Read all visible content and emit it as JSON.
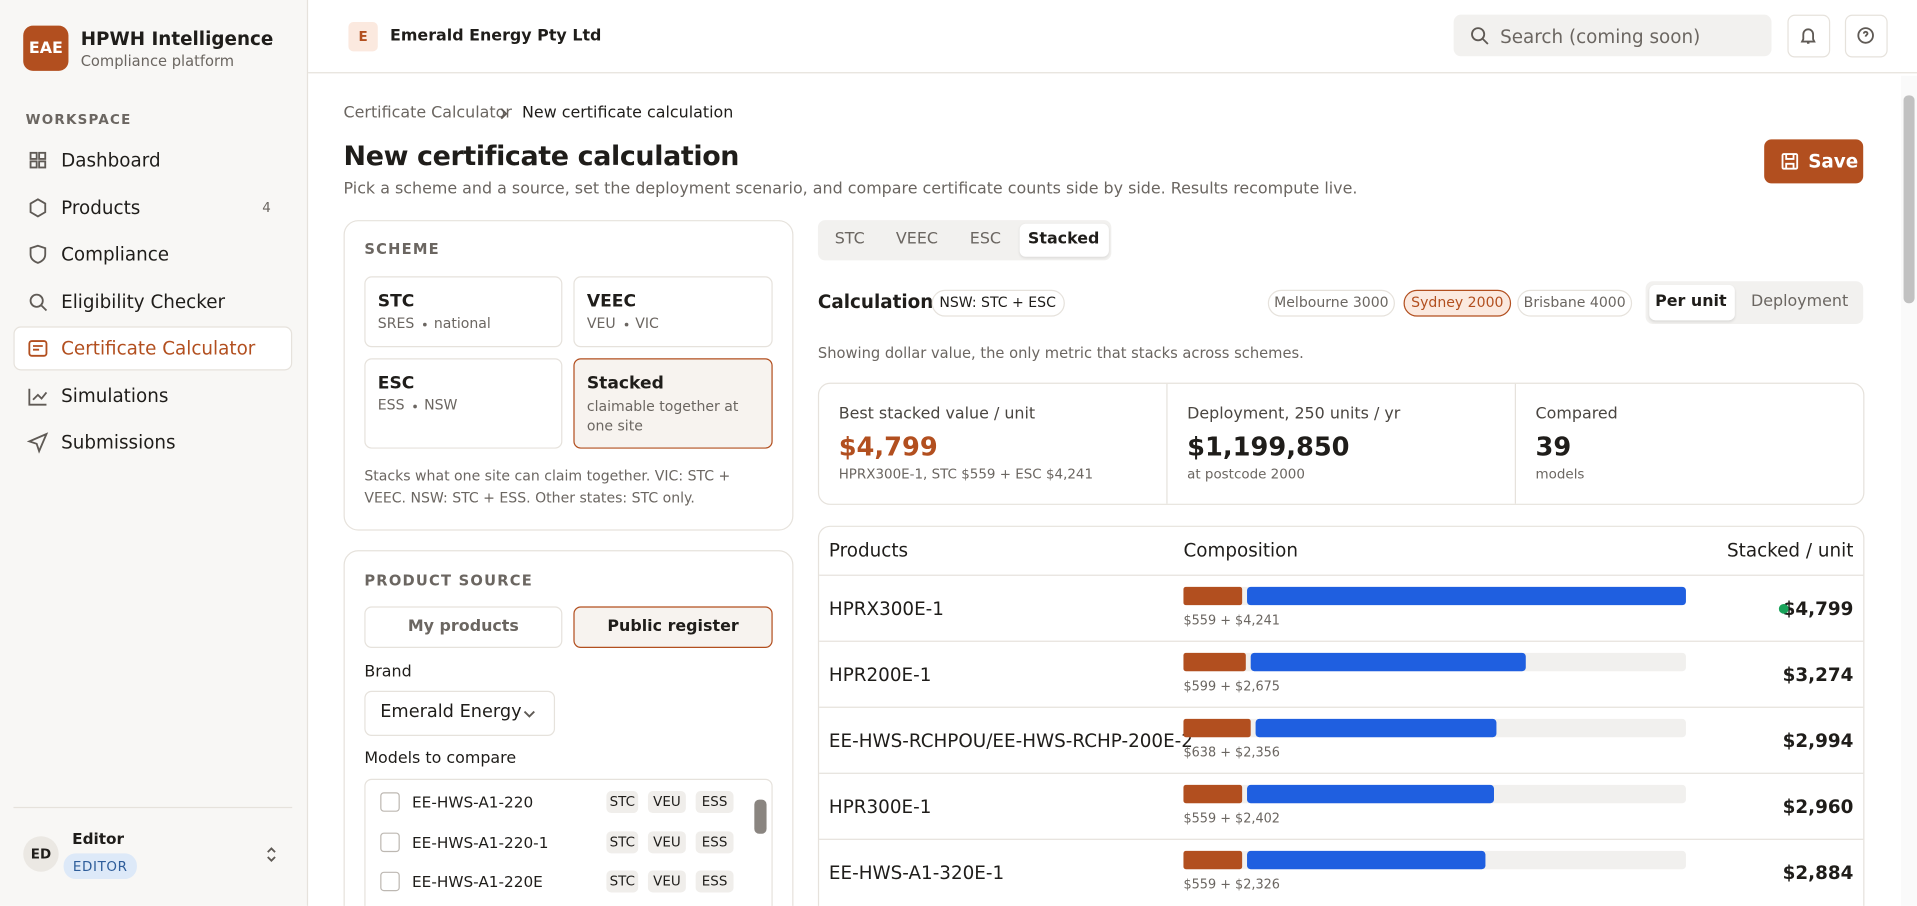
{
  "sidebar": {
    "logo": "EAE",
    "app_name": "HPWH Intelligence",
    "app_subtitle": "Compliance platform",
    "section": "WORKSPACE",
    "nav": [
      {
        "label": "Dashboard"
      },
      {
        "label": "Products",
        "badge": "4"
      },
      {
        "label": "Compliance"
      },
      {
        "label": "Eligibility Checker"
      },
      {
        "label": "Certificate Calculator"
      },
      {
        "label": "Simulations"
      },
      {
        "label": "Submissions"
      }
    ],
    "user": {
      "initials": "ED",
      "name": "Editor",
      "role": "EDITOR"
    }
  },
  "topbar": {
    "org_initial": "E",
    "org_name": "Emerald Energy Pty Ltd",
    "search_placeholder": "Search (coming soon)"
  },
  "breadcrumb": [
    "Certificate Calculator",
    "New certificate calculation"
  ],
  "page": {
    "title": "New certificate calculation",
    "subtitle": "Pick a scheme and a source, set the deployment scenario, and compare certificate counts side by side. Results recompute live.",
    "save": "Save"
  },
  "scheme_panel": {
    "heading": "SCHEME",
    "options": [
      {
        "name": "STC",
        "detail": [
          "SRES",
          "national"
        ]
      },
      {
        "name": "VEEC",
        "detail": [
          "VEU",
          "VIC"
        ]
      },
      {
        "name": "ESC",
        "detail": [
          "ESS",
          "NSW"
        ]
      },
      {
        "name": "Stacked",
        "detail": [
          "claimable together at one site"
        ]
      }
    ],
    "note": "Stacks what one site can claim together. VIC: STC + VEEC. NSW: STC + ESS. Other states: STC only."
  },
  "source_panel": {
    "heading": "PRODUCT SOURCE",
    "tabs": [
      "My products",
      "Public register"
    ],
    "brand_label": "Brand",
    "brand": "Emerald Energy",
    "models_label": "Models to compare",
    "models": [
      {
        "name": "EE-HWS-A1-220",
        "tags": [
          "STC",
          "VEU",
          "ESS"
        ]
      },
      {
        "name": "EE-HWS-A1-220-1",
        "tags": [
          "STC",
          "VEU",
          "ESS"
        ]
      },
      {
        "name": "EE-HWS-A1-220E",
        "tags": [
          "STC",
          "VEU",
          "ESS"
        ]
      }
    ]
  },
  "results": {
    "tabs": [
      "STC",
      "VEEC",
      "ESC",
      "Stacked"
    ],
    "calc_label": "Calculation",
    "calc_tag": "NSW: STC + ESC",
    "locations": [
      "Melbourne 3000",
      "Sydney 2000",
      "Brisbane 4000"
    ],
    "modes": [
      "Per unit",
      "Deployment"
    ],
    "note": "Showing dollar value, the only metric that stacks across schemes.",
    "stats": [
      {
        "label": "Best stacked value / unit",
        "value": "$4,799",
        "detail": "HPRX300E-1, STC $559 + ESC $4,241"
      },
      {
        "label": "Deployment, 250 units / yr",
        "value": "$1,199,850",
        "detail": "at postcode 2000"
      },
      {
        "label": "Compared",
        "value": "39",
        "detail": "models"
      }
    ],
    "table": {
      "columns": [
        "Products",
        "Composition",
        "Stacked / unit"
      ],
      "rows": [
        {
          "product": "HPRX300E-1",
          "stc": 559,
          "esc": 4241,
          "composition": "$559 + $4,241",
          "stacked": "$4,799"
        },
        {
          "product": "HPR200E-1",
          "stc": 599,
          "esc": 2675,
          "composition": "$599 + $2,675",
          "stacked": "$3,274"
        },
        {
          "product": "EE-HWS-RCHPOU/EE-HWS-RCHP-200E-2",
          "stc": 638,
          "esc": 2356,
          "composition": "$638 + $2,356",
          "stacked": "$2,994"
        },
        {
          "product": "HPR300E-1",
          "stc": 559,
          "esc": 2402,
          "composition": "$559 + $2,402",
          "stacked": "$2,960"
        },
        {
          "product": "EE-HWS-A1-320E-1",
          "stc": 559,
          "esc": 2326,
          "composition": "$559 + $2,326",
          "stacked": "$2,884"
        }
      ]
    }
  }
}
